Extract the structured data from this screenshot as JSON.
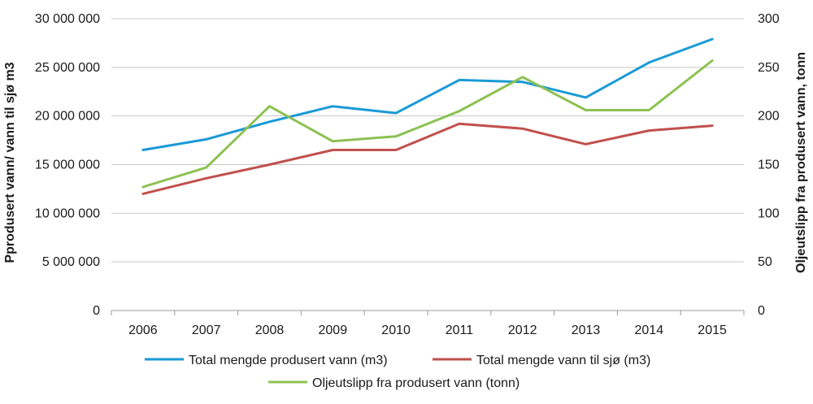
{
  "chart_data": {
    "type": "line",
    "x": [
      "2006",
      "2007",
      "2008",
      "2009",
      "2010",
      "2011",
      "2012",
      "2013",
      "2014",
      "2015"
    ],
    "y_left_label": "Pprodusert vann/ vann til sjø m3",
    "y_right_label": "Oljeutslipp fra produsert vann, tonn",
    "y_left_ticks": [
      "0",
      "5 000 000",
      "10 000 000",
      "15 000 000",
      "20 000 000",
      "25 000 000",
      "30 000 000"
    ],
    "y_right_ticks": [
      "0",
      "50",
      "100",
      "150",
      "200",
      "250",
      "300"
    ],
    "ylim_left": [
      0,
      30000000
    ],
    "ylim_right": [
      0,
      300
    ],
    "grid": true,
    "legend_position": "bottom",
    "series": [
      {
        "name": "Total mengde produsert vann (m3)",
        "axis": "left",
        "color": "#1a9ad6",
        "values": [
          16500000,
          17600000,
          19400000,
          21000000,
          20300000,
          23700000,
          23500000,
          21900000,
          25500000,
          27900000
        ]
      },
      {
        "name": "Total mengde vann til sjø (m3)",
        "axis": "left",
        "color": "#c0504d",
        "values": [
          12000000,
          13600000,
          15000000,
          16500000,
          16500000,
          19200000,
          18700000,
          17100000,
          18500000,
          19000000
        ]
      },
      {
        "name": "Oljeutslipp fra produsert vann (tonn)",
        "axis": "right",
        "color": "#8cc152",
        "values": [
          127,
          147,
          210,
          174,
          179,
          205,
          240,
          206,
          206,
          257
        ]
      }
    ]
  }
}
